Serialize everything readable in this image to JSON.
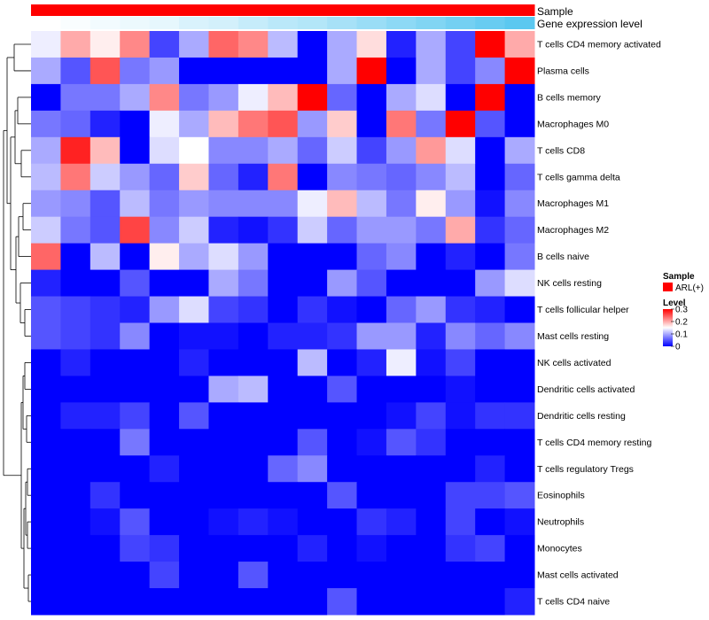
{
  "chart_data": {
    "type": "heatmap",
    "title": "",
    "annotation_tracks": [
      {
        "name": "Sample",
        "label": "Sample"
      },
      {
        "name": "Gene expression level",
        "label": "Gene expression level"
      }
    ],
    "rows": [
      "T cells CD4 memory activated",
      "Plasma cells",
      "B cells memory",
      "Macrophages M0",
      "T cells CD8",
      "T cells gamma delta",
      "Macrophages M1",
      "Macrophages M2",
      "B cells naive",
      "NK cells resting",
      "T cells follicular helper",
      "Mast cells resting",
      "NK cells activated",
      "Dendritic cells activated",
      "Dendritic cells resting",
      "T cells CD4 memory resting",
      "T cells regulatory  Tregs",
      "Eosinophils",
      "Neutrophils",
      "Monocytes",
      "Mast cells activated",
      "T cells CD4 naive"
    ],
    "n_columns": 17,
    "values": [
      [
        0.14,
        0.2,
        0.16,
        0.22,
        0.04,
        0.1,
        0.24,
        0.22,
        0.11,
        0.0,
        0.1,
        0.17,
        0.02,
        0.1,
        0.04,
        0.3,
        0.2
      ],
      [
        0.1,
        0.05,
        0.25,
        0.07,
        0.09,
        0.0,
        0.0,
        0.0,
        0.0,
        0.0,
        0.1,
        0.3,
        0.0,
        0.1,
        0.04,
        0.08,
        0.3
      ],
      [
        0.0,
        0.07,
        0.07,
        0.1,
        0.22,
        0.07,
        0.09,
        0.14,
        0.19,
        0.3,
        0.06,
        0.0,
        0.1,
        0.13,
        0.0,
        0.3,
        0.0
      ],
      [
        0.07,
        0.06,
        0.02,
        0.0,
        0.14,
        0.1,
        0.19,
        0.23,
        0.25,
        0.09,
        0.18,
        0.0,
        0.23,
        0.07,
        0.3,
        0.05,
        0.0
      ],
      [
        0.1,
        0.28,
        0.19,
        0.0,
        0.13,
        0.15,
        0.08,
        0.08,
        0.1,
        0.06,
        0.12,
        0.04,
        0.09,
        0.21,
        0.13,
        0.0,
        0.1
      ],
      [
        0.11,
        0.23,
        0.12,
        0.09,
        0.06,
        0.18,
        0.06,
        0.02,
        0.23,
        0.0,
        0.08,
        0.07,
        0.06,
        0.08,
        0.11,
        0.0,
        0.06
      ],
      [
        0.09,
        0.08,
        0.05,
        0.11,
        0.07,
        0.09,
        0.08,
        0.08,
        0.08,
        0.14,
        0.19,
        0.11,
        0.07,
        0.16,
        0.09,
        0.01,
        0.08
      ],
      [
        0.12,
        0.07,
        0.05,
        0.26,
        0.08,
        0.12,
        0.02,
        0.01,
        0.03,
        0.12,
        0.06,
        0.09,
        0.09,
        0.07,
        0.2,
        0.03,
        0.06
      ],
      [
        0.24,
        0.0,
        0.11,
        0.0,
        0.16,
        0.1,
        0.13,
        0.09,
        0.0,
        0.0,
        0.0,
        0.06,
        0.08,
        0.0,
        0.02,
        0.0,
        0.07
      ],
      [
        0.02,
        0.0,
        0.0,
        0.05,
        0.0,
        0.0,
        0.1,
        0.07,
        0.0,
        0.0,
        0.09,
        0.05,
        0.0,
        0.0,
        0.0,
        0.09,
        0.13
      ],
      [
        0.05,
        0.04,
        0.03,
        0.02,
        0.09,
        0.13,
        0.04,
        0.03,
        0.0,
        0.03,
        0.01,
        0.0,
        0.06,
        0.09,
        0.03,
        0.02,
        0.0
      ],
      [
        0.05,
        0.04,
        0.03,
        0.08,
        0.0,
        0.01,
        0.01,
        0.0,
        0.02,
        0.02,
        0.03,
        0.09,
        0.09,
        0.02,
        0.08,
        0.06,
        0.08
      ],
      [
        0.0,
        0.02,
        0.0,
        0.0,
        0.0,
        0.02,
        0.0,
        0.0,
        0.0,
        0.11,
        0.0,
        0.02,
        0.14,
        0.01,
        0.04,
        0.0,
        0.0
      ],
      [
        0.0,
        0.0,
        0.0,
        0.0,
        0.0,
        0.0,
        0.1,
        0.11,
        0.0,
        0.0,
        0.05,
        0.0,
        0.0,
        0.0,
        0.01,
        0.0,
        0.0
      ],
      [
        0.0,
        0.02,
        0.02,
        0.04,
        0.0,
        0.05,
        0.0,
        0.0,
        0.0,
        0.0,
        0.0,
        0.0,
        0.01,
        0.04,
        0.01,
        0.03,
        0.03
      ],
      [
        0.0,
        0.0,
        0.0,
        0.07,
        0.0,
        0.0,
        0.0,
        0.0,
        0.0,
        0.05,
        0.0,
        0.01,
        0.05,
        0.03,
        0.0,
        0.0,
        0.0
      ],
      [
        0.0,
        0.0,
        0.0,
        0.0,
        0.02,
        0.0,
        0.0,
        0.0,
        0.06,
        0.08,
        0.0,
        0.0,
        0.0,
        0.0,
        0.0,
        0.02,
        0.0
      ],
      [
        0.0,
        0.0,
        0.03,
        0.0,
        0.0,
        0.0,
        0.0,
        0.0,
        0.0,
        0.0,
        0.05,
        0.0,
        0.0,
        0.0,
        0.04,
        0.04,
        0.05
      ],
      [
        0.0,
        0.0,
        0.01,
        0.05,
        0.0,
        0.0,
        0.01,
        0.02,
        0.01,
        0.0,
        0.0,
        0.03,
        0.02,
        0.0,
        0.04,
        0.0,
        0.01
      ],
      [
        0.0,
        0.0,
        0.0,
        0.04,
        0.03,
        0.0,
        0.0,
        0.0,
        0.0,
        0.02,
        0.0,
        0.01,
        0.0,
        0.0,
        0.03,
        0.04,
        0.0
      ],
      [
        0.0,
        0.0,
        0.0,
        0.0,
        0.04,
        0.0,
        0.0,
        0.05,
        0.0,
        0.0,
        0.0,
        0.0,
        0.0,
        0.0,
        0.0,
        0.0,
        0.0
      ],
      [
        0.0,
        0.0,
        0.0,
        0.0,
        0.0,
        0.0,
        0.0,
        0.0,
        0.0,
        0.0,
        0.05,
        0.0,
        0.0,
        0.0,
        0.0,
        0.0,
        0.02
      ]
    ],
    "expression_level_track": [
      0.0,
      0.01,
      0.02,
      0.03,
      0.04,
      0.06,
      0.07,
      0.09,
      0.11,
      0.12,
      0.14,
      0.16,
      0.18,
      0.2,
      0.22,
      0.24,
      0.26
    ],
    "legend": {
      "sample_title": "Sample",
      "sample_entries": [
        {
          "label": "ARL(+)",
          "color": "#ff0000"
        }
      ],
      "level_title": "Level",
      "level_ticks": [
        0,
        0.1,
        0.2,
        0.3
      ],
      "level_tick_labels": [
        "0",
        "0.1",
        "0.2",
        "0.3"
      ],
      "placement": "right"
    },
    "color_scale": {
      "min": 0,
      "mid": 0.15,
      "max": 0.3,
      "low": "#0000ff",
      "mid_color": "#ffffff",
      "high": "#ff0000"
    },
    "expression_track_colors": {
      "low": "#ffffff",
      "high": "#5bc8f0"
    },
    "row_dendrogram": true
  }
}
